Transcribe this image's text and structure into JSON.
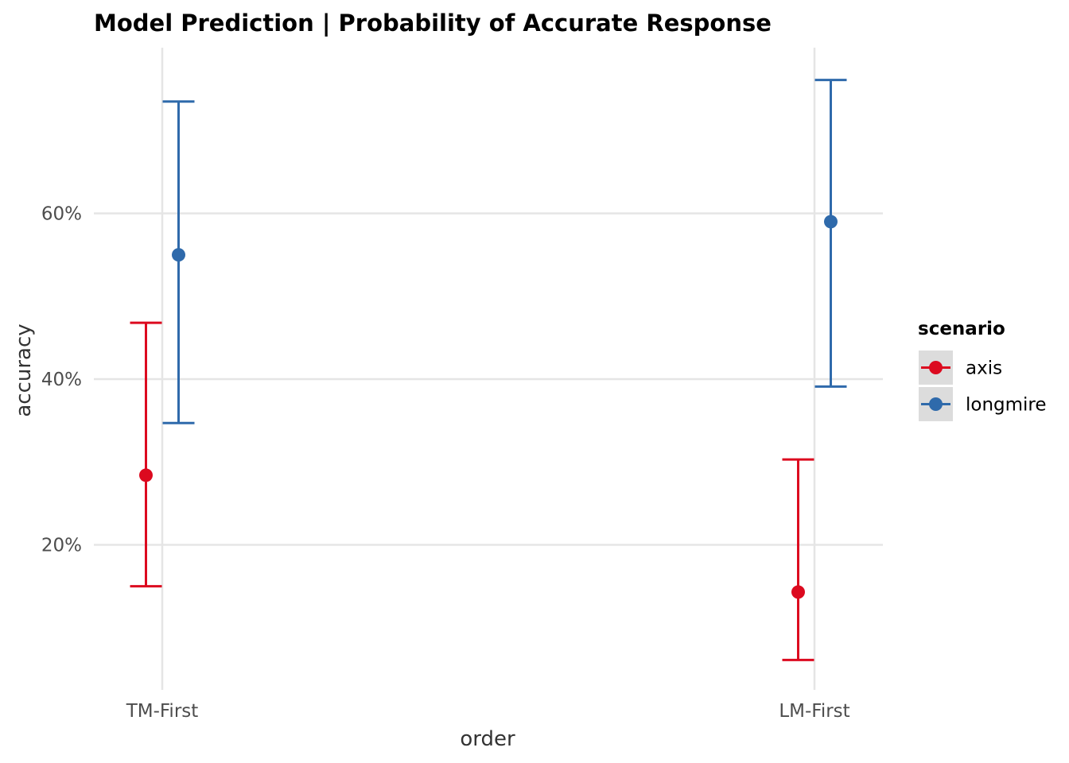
{
  "chart_data": {
    "type": "errorbar",
    "title": "Model Prediction | Probability of Accurate Response",
    "xlabel": "order",
    "ylabel": "accuracy",
    "categories": [
      "TM-First",
      "LM-First"
    ],
    "y_ticks": [
      0.2,
      0.4,
      0.6
    ],
    "y_tick_labels": [
      "20%",
      "40%",
      "60%"
    ],
    "ylim": [
      0.03,
      0.8
    ],
    "legend": {
      "title": "scenario",
      "position": "right",
      "entries": [
        "axis",
        "longmire"
      ]
    },
    "series": [
      {
        "name": "axis",
        "color": "#dc0a1f",
        "estimate": [
          0.284,
          0.143
        ],
        "lower": [
          0.15,
          0.061
        ],
        "upper": [
          0.468,
          0.303
        ]
      },
      {
        "name": "longmire",
        "color": "#2f6aab",
        "estimate": [
          0.55,
          0.59
        ],
        "lower": [
          0.347,
          0.391
        ],
        "upper": [
          0.735,
          0.761
        ]
      }
    ]
  }
}
